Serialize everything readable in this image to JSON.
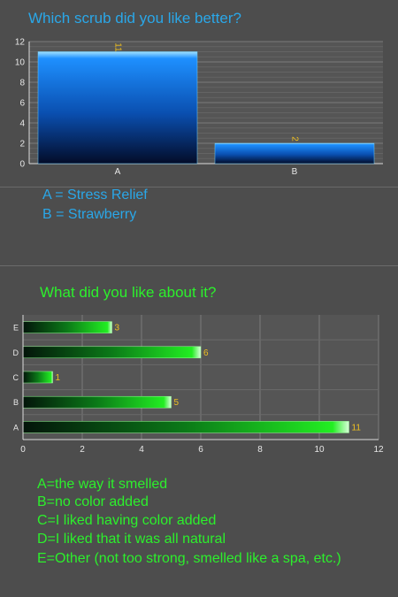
{
  "chart_data": [
    {
      "type": "bar",
      "orientation": "vertical",
      "title": "Which scrub did you like better?",
      "categories": [
        "A",
        "B"
      ],
      "values": [
        11,
        2
      ],
      "ylim": [
        0,
        12
      ],
      "yticks": [
        0,
        2,
        4,
        6,
        8,
        10,
        12
      ],
      "grid": true,
      "bar_color": "#1e90ff",
      "legend": [
        "A = Stress Relief",
        "B = Strawberry"
      ]
    },
    {
      "type": "bar",
      "orientation": "horizontal",
      "title": "What did you like about it?",
      "categories": [
        "A",
        "B",
        "C",
        "D",
        "E"
      ],
      "values": [
        11,
        5,
        1,
        6,
        3
      ],
      "xlim": [
        0,
        12
      ],
      "xticks": [
        0,
        2,
        4,
        6,
        8,
        10,
        12
      ],
      "grid": true,
      "bar_color": "#22ee22",
      "legend": [
        "A=the way it smelled",
        "B=no color added",
        "C=I liked having color added",
        "D=I liked that it was all natural",
        "E=Other (not too strong, smelled like a spa, etc.)"
      ]
    }
  ]
}
